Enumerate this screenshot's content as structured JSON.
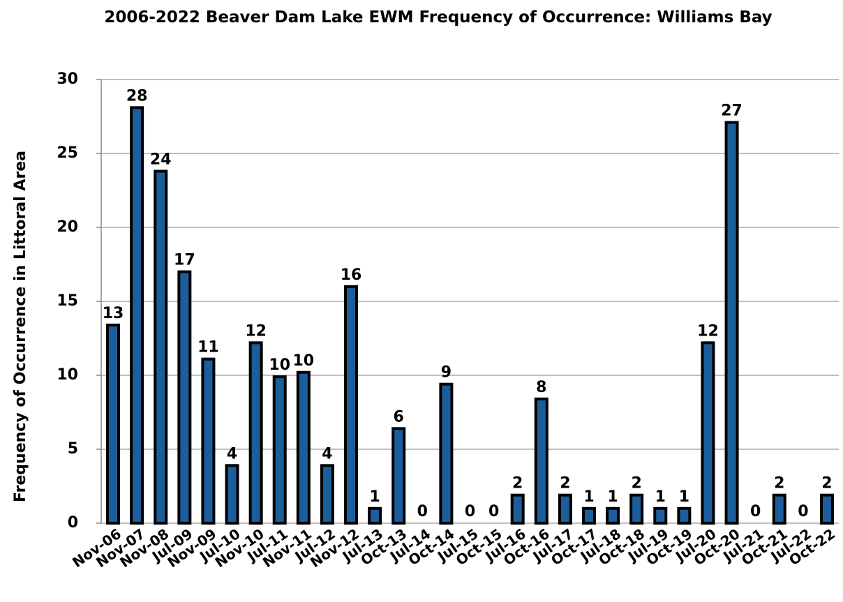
{
  "chart_data": {
    "type": "bar",
    "title": "2006-2022 Beaver Dam Lake EWM Frequency of Occurrence:  Williams Bay",
    "y_label": "Frequency of Occurrence in Littoral Area",
    "categories": [
      "Nov-06",
      "Nov-07",
      "Nov-08",
      "Jul-09",
      "Nov-09",
      "Jul-10",
      "Nov-10",
      "Jul-11",
      "Nov-11",
      "Jul-12",
      "Nov-12",
      "Jul-13",
      "Oct-13",
      "Jul-14",
      "Oct-14",
      "Jul-15",
      "Oct-15",
      "Jul-16",
      "Oct-16",
      "Jul-17",
      "Oct-17",
      "Jul-18",
      "Oct-18",
      "Jul-19",
      "Oct-19",
      "Jul-20",
      "Oct-20",
      "Jul-21",
      "Oct-21",
      "Jul-22",
      "Oct-22"
    ],
    "values": [
      13.4,
      28.1,
      23.8,
      17,
      11.1,
      3.9,
      12.2,
      9.9,
      10.2,
      3.9,
      16,
      1,
      6.4,
      0,
      9.4,
      0,
      0,
      1.9,
      8.4,
      1.9,
      1,
      1,
      1.9,
      1,
      1,
      12.2,
      27.1,
      0,
      1.9,
      0,
      1.9
    ],
    "value_labels": [
      "13",
      "28",
      "24",
      "17",
      "11",
      "4",
      "12",
      "10",
      "10",
      "4",
      "16",
      "1",
      "6",
      "0",
      "9",
      "0",
      "0",
      "2",
      "8",
      "2",
      "1",
      "1",
      "2",
      "1",
      "1",
      "12",
      "27",
      "0",
      "2",
      "0",
      "2"
    ],
    "color": "#1b5e9b",
    "ylim": [
      0,
      30
    ],
    "yticks": [
      0,
      5,
      10,
      15,
      20,
      25,
      30
    ],
    "grid": true
  }
}
